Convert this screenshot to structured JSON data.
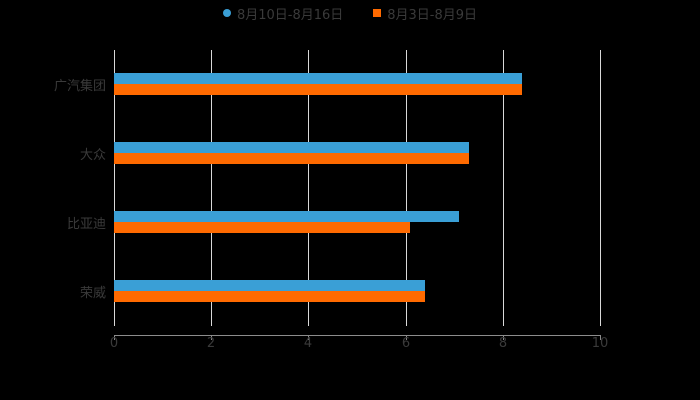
{
  "chart_data": {
    "type": "bar",
    "orientation": "horizontal",
    "title": "",
    "xlabel": "",
    "ylabel": "",
    "categories": [
      "广汽集团",
      "大众",
      "比亚迪",
      "荣威"
    ],
    "series": [
      {
        "name": "8月10日-8月16日",
        "color": "#3a9fd6",
        "values": [
          8.4,
          7.3,
          7.1,
          6.4
        ]
      },
      {
        "name": "8月3日-8月9日",
        "color": "#ff6a00",
        "values": [
          8.4,
          7.3,
          6.1,
          6.4
        ]
      }
    ],
    "xlim": [
      0,
      10
    ],
    "x_ticks": [
      "0",
      "2",
      "4",
      "6",
      "8",
      "10"
    ],
    "grid": true,
    "legend_position": "top"
  },
  "legend": [
    {
      "label": "8月10日-8月16日",
      "color": "#3a9fd6",
      "marker": "circle"
    },
    {
      "label": "8月3日-8月9日",
      "color": "#ff6a00",
      "marker": "square"
    }
  ]
}
